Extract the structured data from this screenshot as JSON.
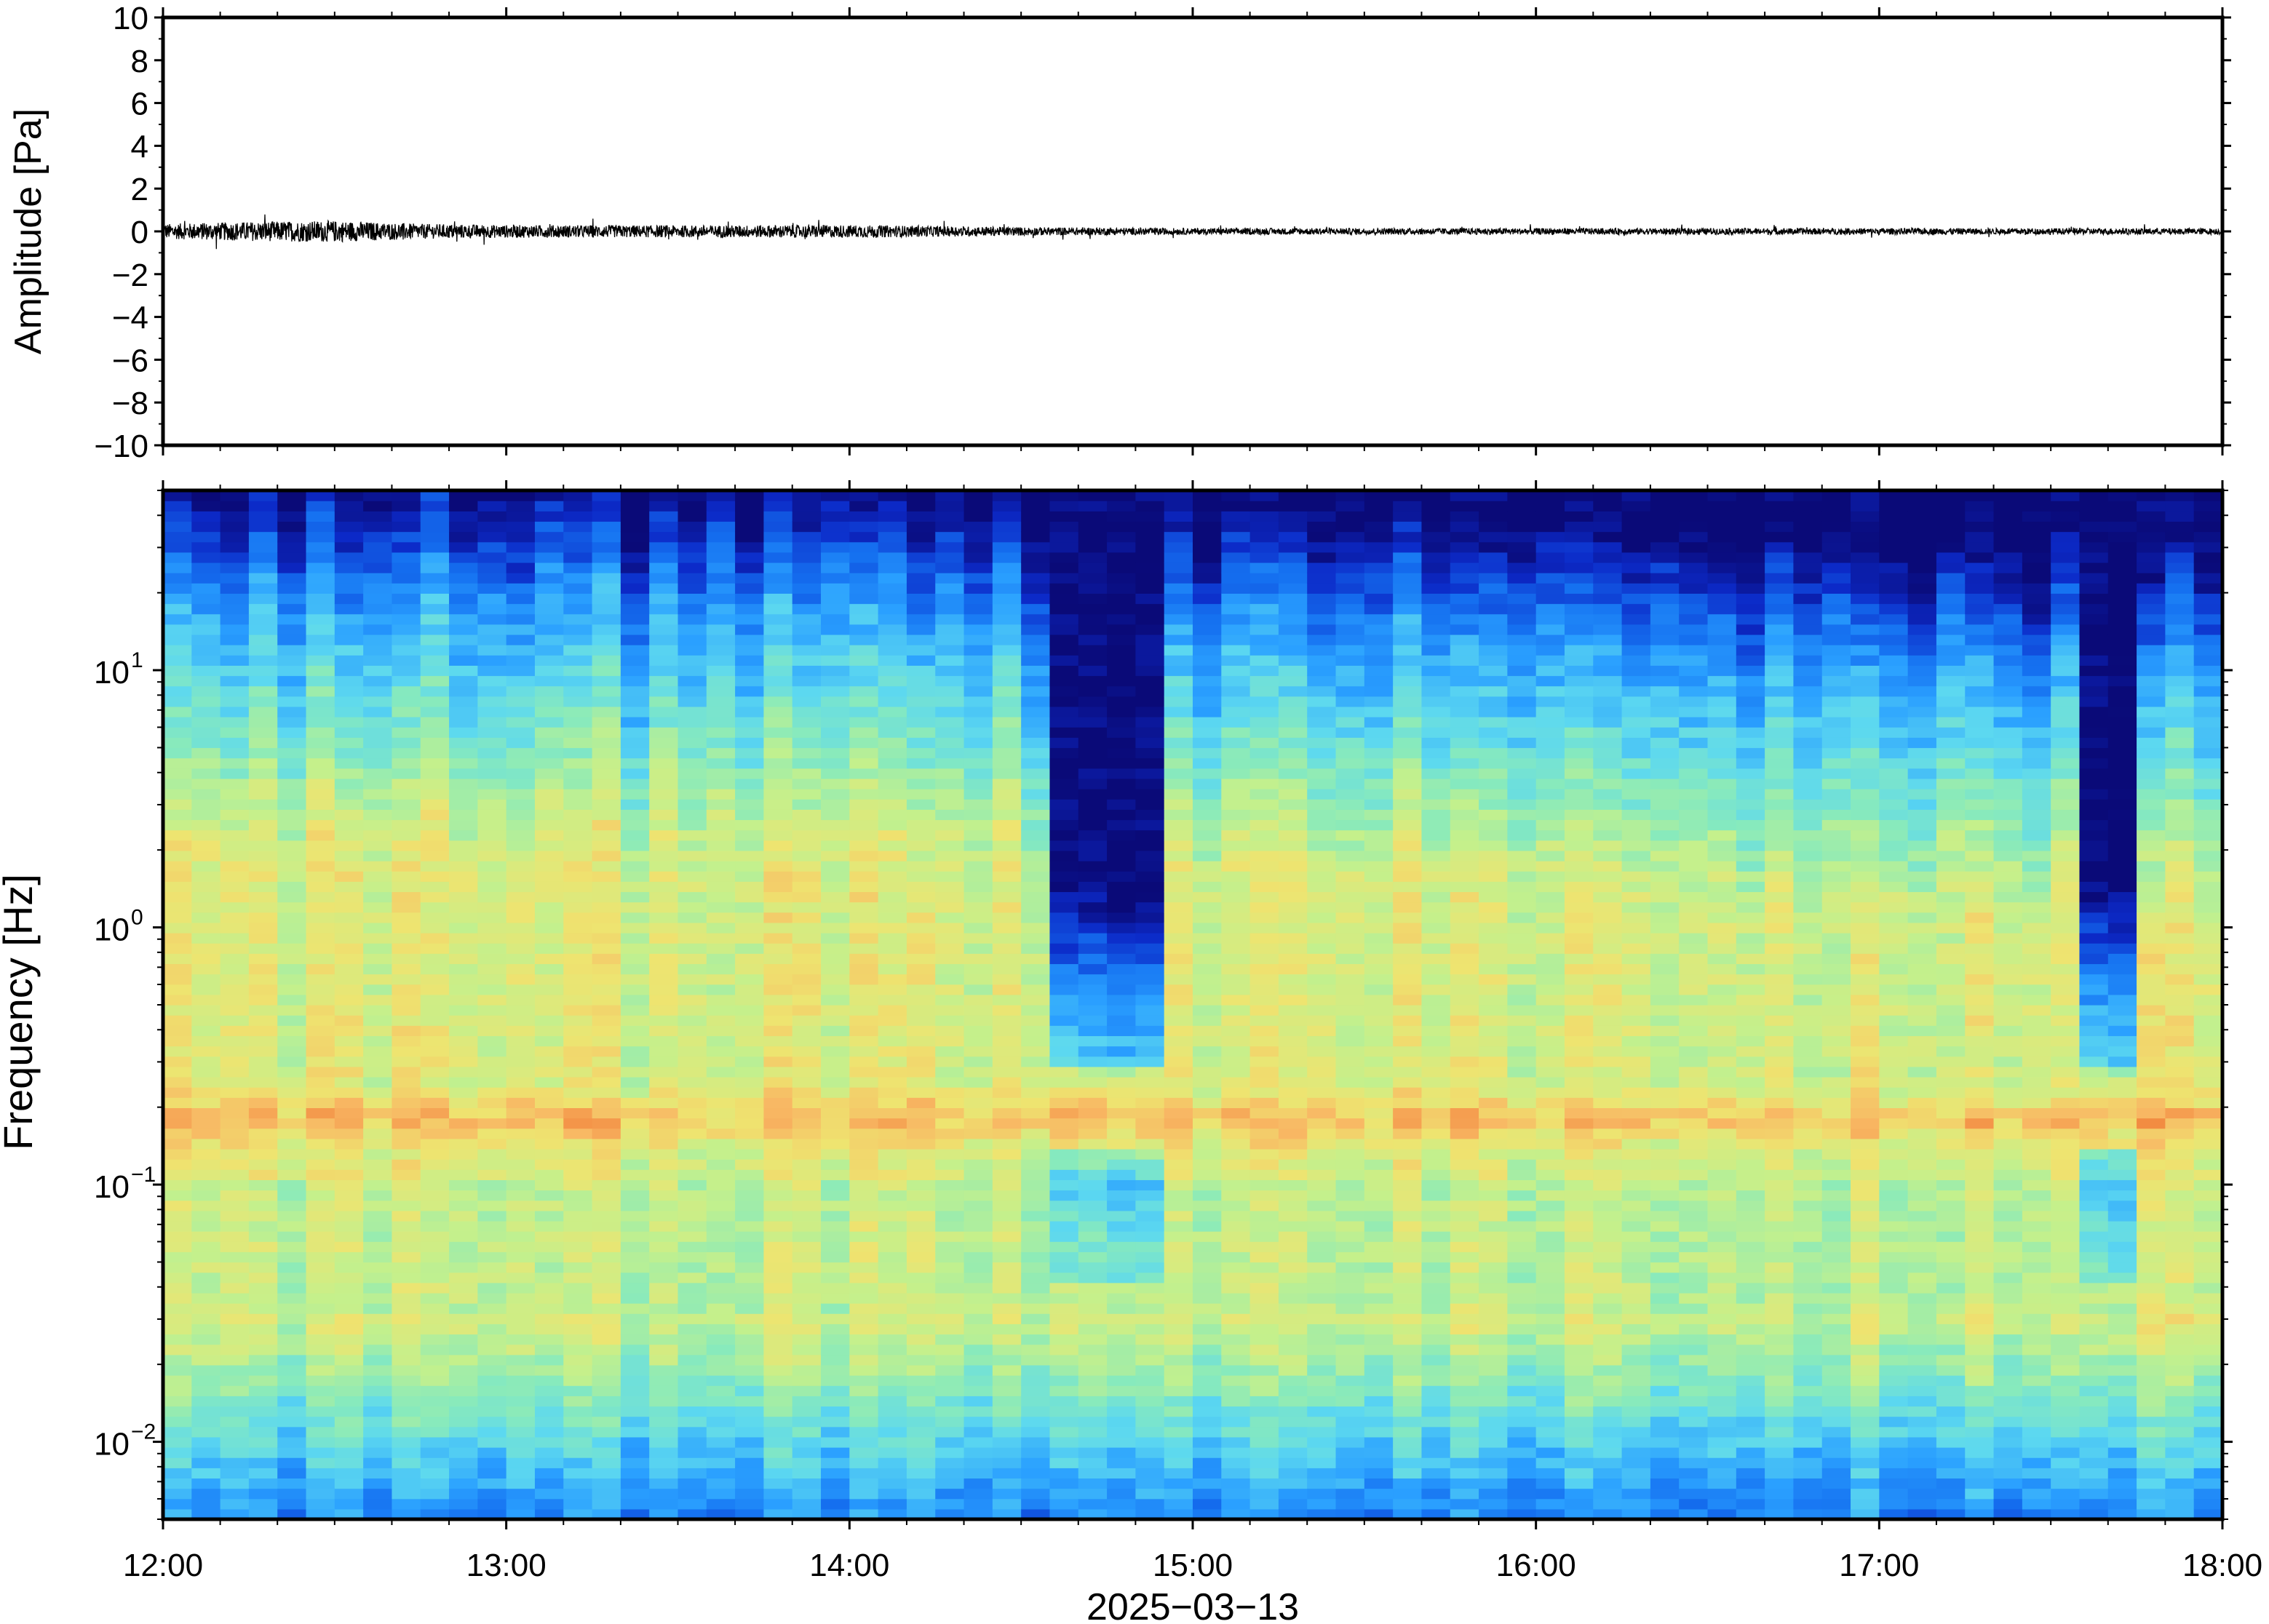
{
  "chart_data": [
    {
      "type": "line",
      "panel": "waveform",
      "ylabel": "Amplitude [Pa]",
      "ylim": [
        -10,
        10
      ],
      "yticks": [
        -10,
        -8,
        -6,
        -4,
        -2,
        0,
        2,
        4,
        6,
        8,
        10
      ],
      "ytick_labels": [
        "−10",
        "−8",
        "−6",
        "−4",
        "−2",
        "0",
        "2",
        "4",
        "6",
        "8",
        "10"
      ],
      "x_range": [
        "12:00",
        "18:00"
      ],
      "envelope": {
        "hours": [
          12.0,
          12.25,
          12.5,
          12.75,
          13.0,
          13.5,
          14.0,
          14.5,
          15.0,
          15.5,
          16.0,
          16.5,
          17.0,
          17.5,
          18.0
        ],
        "peak_pa": [
          0.35,
          0.45,
          0.5,
          0.35,
          0.3,
          0.28,
          0.3,
          0.2,
          0.15,
          0.15,
          0.15,
          0.15,
          0.15,
          0.15,
          0.15
        ]
      },
      "line_color": "#000000",
      "grid": false
    },
    {
      "type": "heatmap",
      "panel": "spectrogram",
      "ylabel": "Frequency [Hz]",
      "xlabel": "2025−03−13",
      "xtick_labels": [
        "12:00",
        "13:00",
        "14:00",
        "15:00",
        "16:00",
        "17:00",
        "18:00"
      ],
      "yscale": "log",
      "ylim": [
        0.005,
        50
      ],
      "ytick_base": "10",
      "ytick_exponents": [
        "−2",
        "−1",
        "0",
        "1"
      ],
      "colormap": "jet",
      "colormap_stops": [
        "#0a0a78",
        "#0c2ac8",
        "#1570f0",
        "#2aa0ff",
        "#5cd8f0",
        "#88eabc",
        "#c4f08c",
        "#eee470",
        "#f8b864",
        "#f07a34"
      ],
      "microseism_band_hz": 0.18,
      "quiet_interval_hours": [
        14.6,
        14.95
      ],
      "grid": false
    }
  ]
}
